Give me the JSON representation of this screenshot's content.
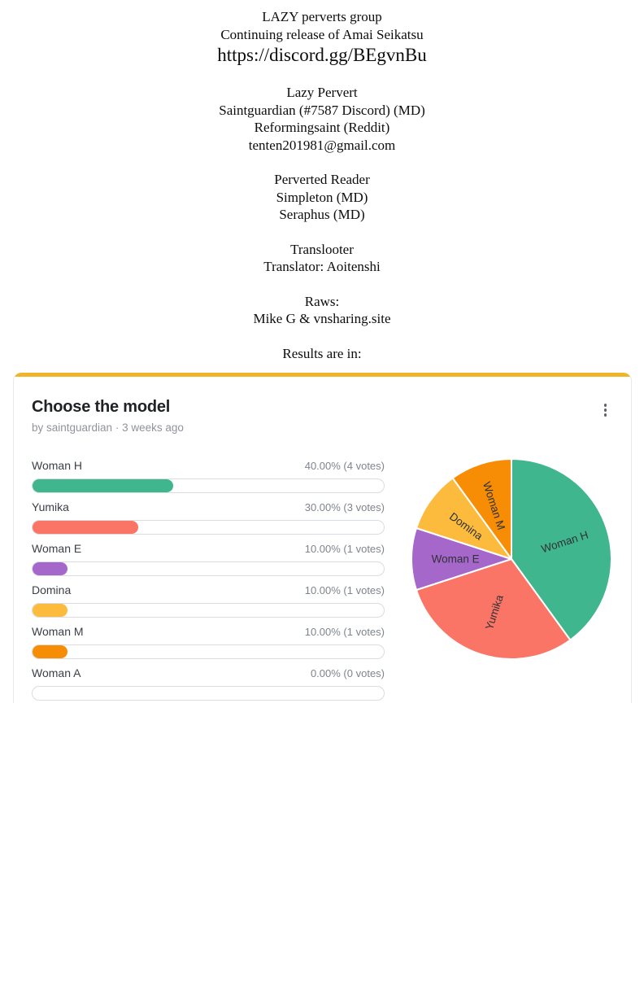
{
  "credits": {
    "blocks": [
      {
        "kind": "normal",
        "lines": [
          "LAZY perverts group",
          "Continuing release of Amai Seikatsu"
        ]
      },
      {
        "kind": "url",
        "lines": [
          "https://discord.gg/BEgvnBu"
        ]
      },
      {
        "kind": "normal",
        "lines": [
          "Lazy Pervert",
          "Saintguardian (#7587 Discord) (MD)",
          "Reformingsaint (Reddit)",
          "tenten201981@gmail.com"
        ]
      },
      {
        "kind": "normal",
        "lines": [
          "Perverted Reader",
          "Simpleton (MD)",
          "Seraphus (MD)"
        ]
      },
      {
        "kind": "normal",
        "lines": [
          "Translooter",
          "Translator: Aoitenshi"
        ]
      },
      {
        "kind": "normal",
        "lines": [
          "Raws:",
          "Mike G & vnsharing.site"
        ]
      },
      {
        "kind": "normal",
        "lines": [
          "Results are in:"
        ]
      }
    ]
  },
  "poll": {
    "title": "Choose the model",
    "byline": "by saintguardian · 3 weeks ago",
    "accent_color": "#f0b429",
    "menu_icon": "kebab-menu",
    "options": [
      {
        "label": "Woman H",
        "percent": 40,
        "votes": 4,
        "percent_text": "40.00% (4 votes)",
        "color": "#3fb68d"
      },
      {
        "label": "Yumika",
        "percent": 30,
        "votes": 3,
        "percent_text": "30.00% (3 votes)",
        "color": "#fb7566"
      },
      {
        "label": "Woman E",
        "percent": 10,
        "votes": 1,
        "percent_text": "10.00% (1 votes)",
        "color": "#a667cb"
      },
      {
        "label": "Domina",
        "percent": 10,
        "votes": 1,
        "percent_text": "10.00% (1 votes)",
        "color": "#fcbb3d"
      },
      {
        "label": "Woman M",
        "percent": 10,
        "votes": 1,
        "percent_text": "10.00% (1 votes)",
        "color": "#f78d05"
      },
      {
        "label": "Woman A",
        "percent": 0,
        "votes": 0,
        "percent_text": "0.00% (0 votes)",
        "color": null
      }
    ]
  },
  "chart_data": {
    "type": "pie",
    "title": "Choose the model",
    "categories": [
      "Woman H",
      "Yumika",
      "Woman E",
      "Domina",
      "Woman M",
      "Woman A"
    ],
    "values": [
      40,
      30,
      10,
      10,
      10,
      0
    ],
    "colors": [
      "#3fb68d",
      "#fb7566",
      "#a667cb",
      "#fcbb3d",
      "#f78d05",
      null
    ],
    "start_angle_deg": 0,
    "direction": "clockwise",
    "slice_separator_color": "#ffffff",
    "labels_on_slices": true,
    "legend": "none"
  }
}
